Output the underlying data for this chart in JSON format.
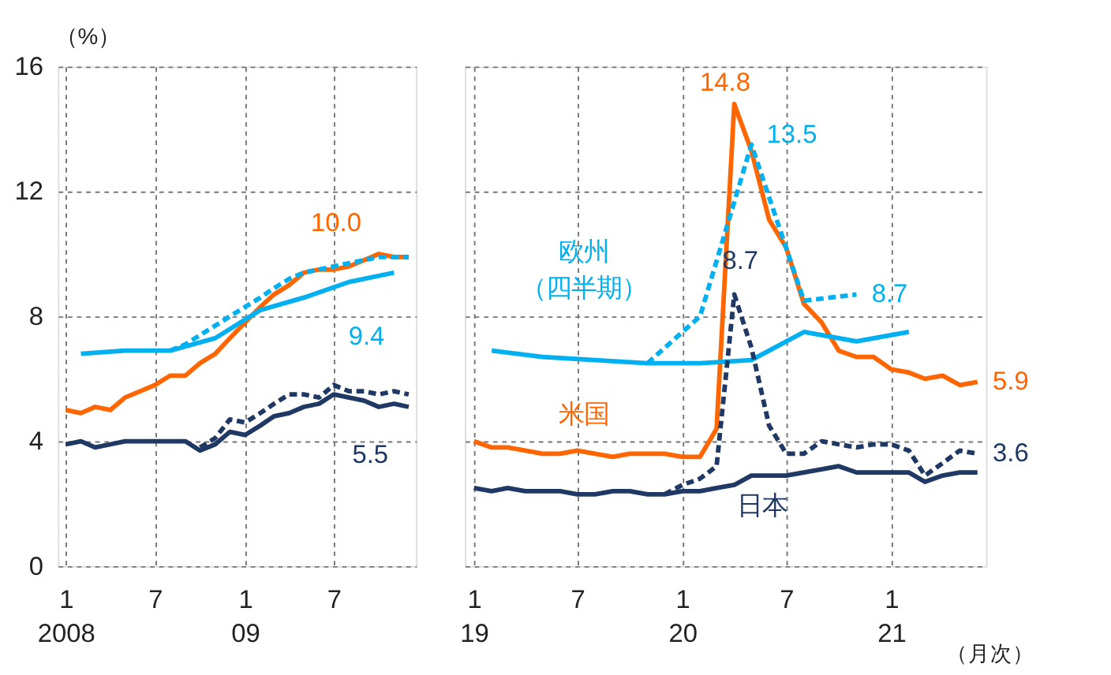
{
  "chart_data": [
    {
      "type": "line",
      "ylabel": "（%）",
      "grid": true,
      "ylim": [
        0,
        16
      ],
      "yticks": [
        0,
        4,
        8,
        12,
        16
      ],
      "xlim": [
        "2007-12-16",
        "2009-12-16"
      ],
      "xticks": [
        {
          "value": "2008-01",
          "label": "1\n2008"
        },
        {
          "value": "2008-07",
          "label": "7"
        },
        {
          "value": "2009-01",
          "label": "1\n09"
        },
        {
          "value": "2009-07",
          "label": "7"
        }
      ],
      "series": [
        {
          "color": "#ff6600",
          "x": [
            "2008-01",
            "2008-02",
            "2008-03",
            "2008-04",
            "2008-05",
            "2008-06",
            "2008-07",
            "2008-08",
            "2008-09",
            "2008-10",
            "2008-11",
            "2008-12",
            "2009-01",
            "2009-02",
            "2009-03",
            "2009-04",
            "2009-05",
            "2009-06",
            "2009-07",
            "2009-08",
            "2009-09",
            "2009-10",
            "2009-11",
            "2009-12"
          ],
          "values": [
            5.0,
            4.9,
            5.1,
            5.0,
            5.4,
            5.6,
            5.8,
            6.1,
            6.1,
            6.5,
            6.8,
            7.3,
            7.8,
            8.3,
            8.7,
            9.0,
            9.4,
            9.5,
            9.5,
            9.6,
            9.8,
            10.0,
            9.9,
            9.9
          ]
        },
        {
          "color": "#00b0f0",
          "x": [
            "2008-02",
            "2008-05",
            "2008-08",
            "2008-11",
            "2009-02",
            "2009-05",
            "2009-08",
            "2009-11"
          ],
          "values": [
            6.8,
            6.9,
            6.9,
            7.3,
            8.2,
            8.6,
            9.1,
            9.4
          ]
        },
        {
          "color": "#00b0f0",
          "line_style": "dashed",
          "x": [
            "2008-08",
            "2008-09",
            "2008-10",
            "2008-11",
            "2008-12",
            "2009-01",
            "2009-02",
            "2009-03",
            "2009-04",
            "2009-05",
            "2009-06",
            "2009-07",
            "2009-08",
            "2009-09",
            "2009-10",
            "2009-11",
            "2009-12"
          ],
          "values": [
            6.9,
            7.1,
            7.4,
            7.7,
            8.0,
            8.3,
            8.6,
            8.9,
            9.2,
            9.4,
            9.5,
            9.6,
            9.7,
            9.8,
            9.9,
            9.9,
            9.9
          ]
        },
        {
          "color": "#1f3864",
          "x": [
            "2008-01",
            "2008-02",
            "2008-03",
            "2008-04",
            "2008-05",
            "2008-06",
            "2008-07",
            "2008-08",
            "2008-09",
            "2008-10",
            "2008-11",
            "2008-12",
            "2009-01",
            "2009-02",
            "2009-03",
            "2009-04",
            "2009-05",
            "2009-06",
            "2009-07",
            "2009-08",
            "2009-09",
            "2009-10",
            "2009-11",
            "2009-12"
          ],
          "values": [
            3.9,
            4.0,
            3.8,
            3.9,
            4.0,
            4.0,
            4.0,
            4.0,
            4.0,
            3.7,
            3.9,
            4.3,
            4.2,
            4.5,
            4.8,
            4.9,
            5.1,
            5.2,
            5.5,
            5.4,
            5.3,
            5.1,
            5.2,
            5.1
          ]
        },
        {
          "color": "#1f3864",
          "line_style": "dashed",
          "x": [
            "2008-10",
            "2008-11",
            "2008-12",
            "2009-01",
            "2009-02",
            "2009-03",
            "2009-04",
            "2009-05",
            "2009-06",
            "2009-07",
            "2009-08",
            "2009-09",
            "2009-10",
            "2009-11",
            "2009-12"
          ],
          "values": [
            3.8,
            4.1,
            4.7,
            4.6,
            4.9,
            5.2,
            5.5,
            5.5,
            5.4,
            5.8,
            5.6,
            5.6,
            5.5,
            5.6,
            5.5
          ]
        }
      ],
      "annotations": [
        {
          "text": "10.0",
          "x": "2009-10",
          "y": 10.0
        },
        {
          "text": "9.4",
          "x": "2009-11",
          "y": 9.4
        },
        {
          "text": "5.5",
          "x": "2009-07",
          "y": 5.5
        }
      ]
    },
    {
      "type": "line",
      "grid": true,
      "tick_labels": "x",
      "ylim": [
        0,
        16
      ],
      "yticks": [
        0,
        4,
        8,
        12,
        16
      ],
      "xlim": [
        "2018-12-16",
        "2021-06-16"
      ],
      "xticks": [
        {
          "value": "2019-01",
          "label": "1\n19"
        },
        {
          "value": "2019-07",
          "label": "7"
        },
        {
          "value": "2020-01",
          "label": "1\n20"
        },
        {
          "value": "2020-07",
          "label": "7"
        },
        {
          "value": "2021-01",
          "label": "1\n21"
        }
      ],
      "series": [
        {
          "name": "米国",
          "color": "#ff6600",
          "x": [
            "2019-01",
            "2019-02",
            "2019-03",
            "2019-04",
            "2019-05",
            "2019-06",
            "2019-07",
            "2019-08",
            "2019-09",
            "2019-10",
            "2019-11",
            "2019-12",
            "2020-01",
            "2020-02",
            "2020-03",
            "2020-04",
            "2020-05",
            "2020-06",
            "2020-07",
            "2020-08",
            "2020-09",
            "2020-10",
            "2020-11",
            "2020-12",
            "2021-01",
            "2021-02",
            "2021-03",
            "2021-04",
            "2021-05",
            "2021-06"
          ],
          "values": [
            4.0,
            3.8,
            3.8,
            3.7,
            3.6,
            3.6,
            3.7,
            3.6,
            3.5,
            3.6,
            3.6,
            3.6,
            3.5,
            3.5,
            4.4,
            14.8,
            13.3,
            11.1,
            10.2,
            8.4,
            7.8,
            6.9,
            6.7,
            6.7,
            6.3,
            6.2,
            6.0,
            6.1,
            5.8,
            5.9
          ]
        },
        {
          "name": "欧州（四半期）",
          "color": "#00b0f0",
          "x": [
            "2019-02",
            "2019-05",
            "2019-08",
            "2019-11",
            "2020-02",
            "2020-05",
            "2020-08",
            "2020-11",
            "2021-02"
          ],
          "values": [
            6.9,
            6.7,
            6.6,
            6.5,
            6.5,
            6.6,
            7.5,
            7.2,
            7.5
          ]
        },
        {
          "color": "#00b0f0",
          "line_style": "dashed",
          "x": [
            "2019-11",
            "2020-02",
            "2020-05",
            "2020-08",
            "2020-11"
          ],
          "values": [
            6.5,
            8.0,
            13.5,
            8.5,
            8.7
          ]
        },
        {
          "name": "日本",
          "color": "#1f3864",
          "x": [
            "2019-01",
            "2019-02",
            "2019-03",
            "2019-04",
            "2019-05",
            "2019-06",
            "2019-07",
            "2019-08",
            "2019-09",
            "2019-10",
            "2019-11",
            "2019-12",
            "2020-01",
            "2020-02",
            "2020-03",
            "2020-04",
            "2020-05",
            "2020-06",
            "2020-07",
            "2020-08",
            "2020-09",
            "2020-10",
            "2020-11",
            "2020-12",
            "2021-01",
            "2021-02",
            "2021-03",
            "2021-04",
            "2021-05",
            "2021-06"
          ],
          "values": [
            2.5,
            2.4,
            2.5,
            2.4,
            2.4,
            2.4,
            2.3,
            2.3,
            2.4,
            2.4,
            2.3,
            2.3,
            2.4,
            2.4,
            2.5,
            2.6,
            2.9,
            2.9,
            2.9,
            3.0,
            3.1,
            3.2,
            3.0,
            3.0,
            3.0,
            3.0,
            2.7,
            2.9,
            3.0,
            3.0
          ]
        },
        {
          "color": "#1f3864",
          "line_style": "dashed",
          "x": [
            "2019-12",
            "2020-01",
            "2020-02",
            "2020-03",
            "2020-04",
            "2020-05",
            "2020-06",
            "2020-07",
            "2020-08",
            "2020-09",
            "2020-10",
            "2020-11",
            "2020-12",
            "2021-01",
            "2021-02",
            "2021-03",
            "2021-04",
            "2021-05",
            "2021-06"
          ],
          "values": [
            2.3,
            2.6,
            2.8,
            3.2,
            8.7,
            7.0,
            4.5,
            3.6,
            3.6,
            4.0,
            3.9,
            3.8,
            3.9,
            3.9,
            3.7,
            2.9,
            3.3,
            3.7,
            3.6
          ]
        }
      ],
      "annotations": [
        {
          "text": "14.8",
          "x": "2020-04",
          "y": 14.8
        },
        {
          "text": "13.5",
          "x": "2020-05",
          "y": 13.5
        },
        {
          "text": "8.7",
          "x": "2020-04",
          "y": 8.7
        },
        {
          "text": "8.7",
          "x": "2020-11",
          "y": 8.7
        },
        {
          "text": "5.9",
          "x": "2021-06",
          "y": 5.9
        },
        {
          "text": "3.6",
          "x": "2021-06",
          "y": 3.6
        },
        "（月次）"
      ]
    }
  ]
}
